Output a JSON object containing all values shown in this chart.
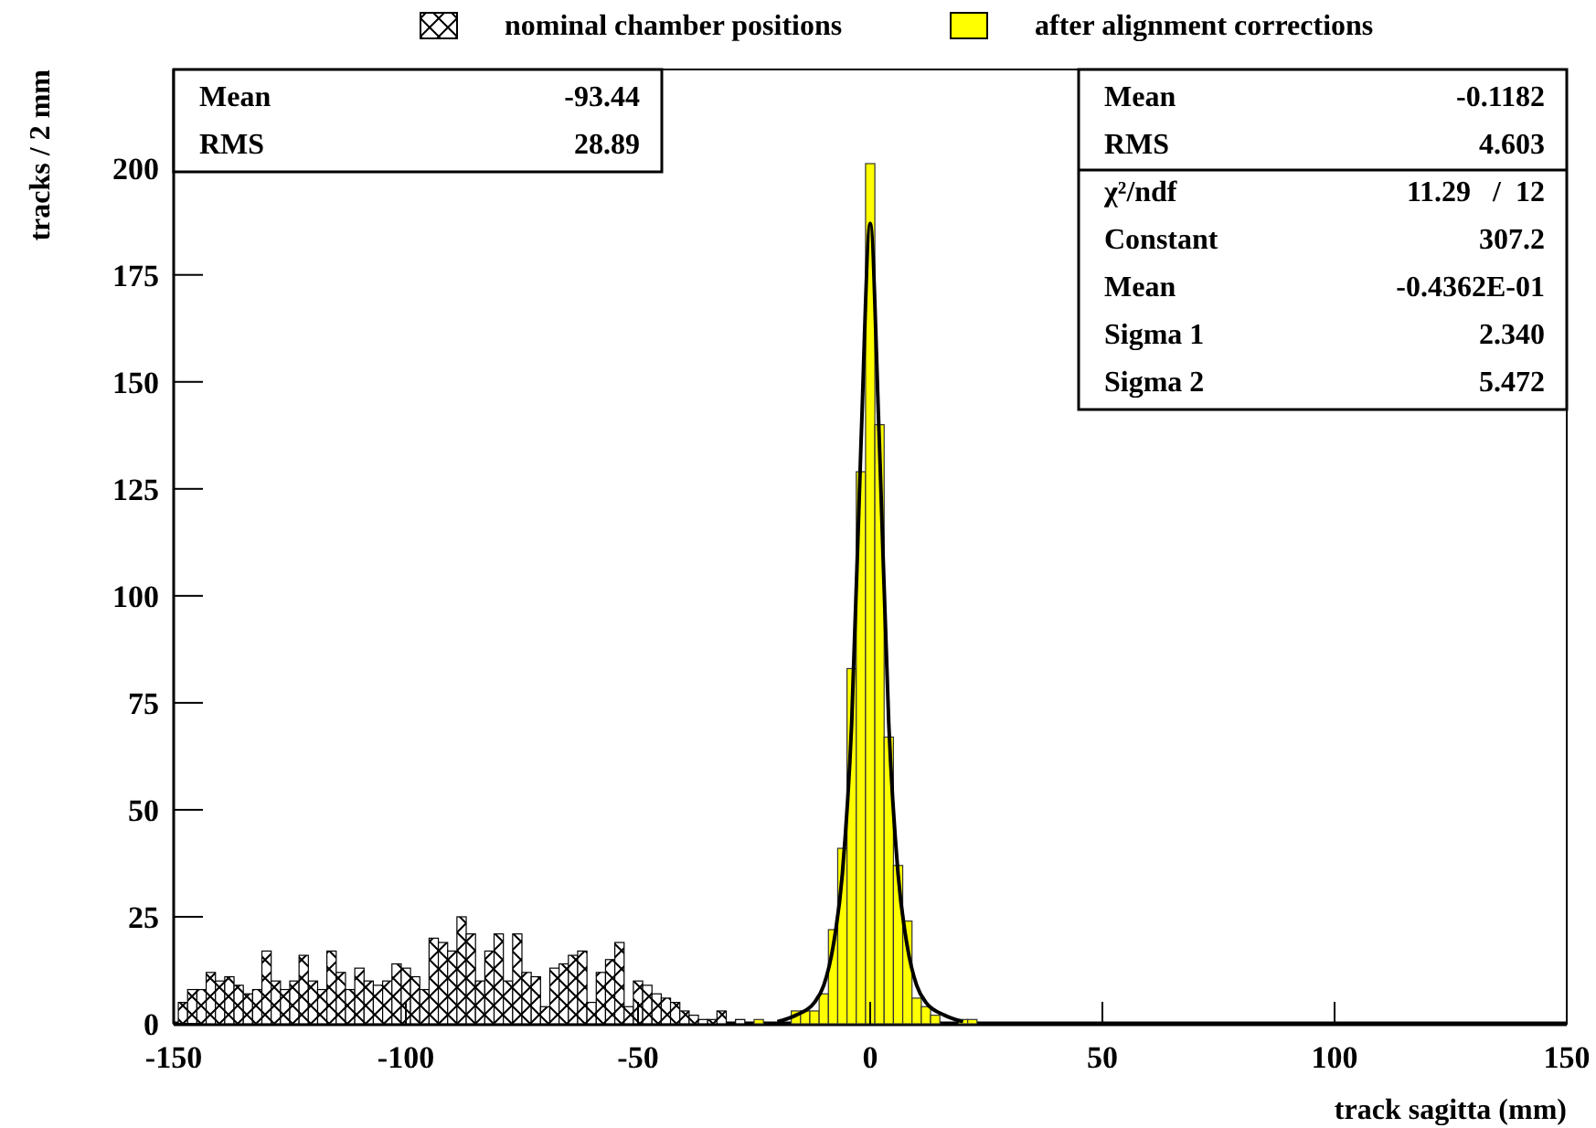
{
  "chart_data": {
    "type": "histogram",
    "xlabel": "track sagitta (mm)",
    "ylabel": "tracks / 2 mm",
    "bins": [
      -149,
      -147,
      -145,
      -143,
      -141,
      -139,
      -137,
      -135,
      -133,
      -131,
      -129,
      -127,
      -125,
      -123,
      -121,
      -119,
      -117,
      -115,
      -113,
      -111,
      -109,
      -107,
      -105,
      -103,
      -101,
      -99,
      -97,
      -95,
      -93,
      -91,
      -89,
      -87,
      -85,
      -83,
      -81,
      -79,
      -77,
      -75,
      -73,
      -71,
      -69,
      -67,
      -65,
      -63,
      -61,
      -59,
      -57,
      -55,
      -53,
      -51,
      -49,
      -47,
      -45,
      -43,
      -41,
      -39,
      -37,
      -35,
      -33,
      -31,
      -29,
      -27,
      -25,
      -23,
      -21,
      -19,
      -17,
      -15,
      -13,
      -11,
      -9,
      -7,
      -5,
      -3,
      -1,
      1,
      3,
      5,
      7,
      9,
      11,
      13,
      15,
      17,
      19,
      21,
      23
    ],
    "series": [
      {
        "name": "nominal chamber positions",
        "color": "#000000",
        "values": [
          5,
          8,
          8,
          12,
          10,
          11,
          9,
          7,
          8,
          17,
          10,
          8,
          10,
          16,
          10,
          8,
          17,
          12,
          8,
          13,
          10,
          9,
          10,
          14,
          13,
          11,
          8,
          20,
          19,
          17,
          25,
          21,
          10,
          17,
          21,
          10,
          21,
          12,
          11,
          4,
          13,
          14,
          16,
          17,
          5,
          12,
          15,
          19,
          4,
          10,
          9,
          7,
          6,
          5,
          3,
          2,
          1,
          1,
          3,
          0,
          1,
          0,
          0,
          0,
          0,
          0,
          0,
          0,
          0,
          0,
          0,
          0,
          0,
          0,
          0,
          0,
          0,
          0,
          0,
          0,
          0,
          0,
          0,
          0,
          0,
          0
        ]
      },
      {
        "name": "after alignment corrections",
        "color": "#ffff00",
        "values": [
          0,
          0,
          0,
          0,
          0,
          0,
          0,
          0,
          0,
          0,
          0,
          0,
          0,
          0,
          0,
          0,
          0,
          0,
          0,
          0,
          0,
          0,
          0,
          0,
          0,
          0,
          0,
          0,
          0,
          0,
          0,
          0,
          0,
          0,
          0,
          0,
          0,
          0,
          0,
          0,
          0,
          0,
          0,
          0,
          0,
          0,
          0,
          0,
          0,
          0,
          0,
          0,
          0,
          0,
          0,
          0,
          0,
          0,
          0,
          0,
          0,
          0,
          1,
          0,
          0,
          0,
          3,
          3,
          3,
          7,
          22,
          41,
          83,
          129,
          201,
          140,
          67,
          37,
          24,
          6,
          4,
          2,
          0,
          0,
          1,
          1
        ]
      },
      {
        "type": "line",
        "color": "#000000",
        "x": [
          -20,
          -16,
          -12,
          -10,
          -8,
          -6,
          -4,
          -2,
          0,
          2,
          4,
          6,
          8,
          10,
          12,
          16,
          20
        ],
        "values": [
          0.5,
          2,
          5,
          9,
          18,
          35,
          70,
          135,
          187,
          135,
          70,
          35,
          18,
          9,
          5,
          2,
          0.5
        ]
      }
    ],
    "xlim": [
      -150,
      150
    ],
    "xticks": [
      -150,
      -100,
      -50,
      0,
      50,
      100,
      150
    ],
    "ylim": [
      0,
      223
    ],
    "yticks": [
      0,
      25,
      50,
      75,
      100,
      125,
      150,
      175,
      200
    ],
    "legend": "top",
    "annotations": [
      "Mean\t-93.44",
      "RMS\t28.89",
      "Mean\t-0.1182",
      "RMS\t4.603",
      "χ²/ndf\t11.29   /  12",
      "Constant\t307.2",
      "Mean\t-0.4362E-01",
      "Sigma 1\t2.340",
      "Sigma 2\t5.472"
    ]
  }
}
